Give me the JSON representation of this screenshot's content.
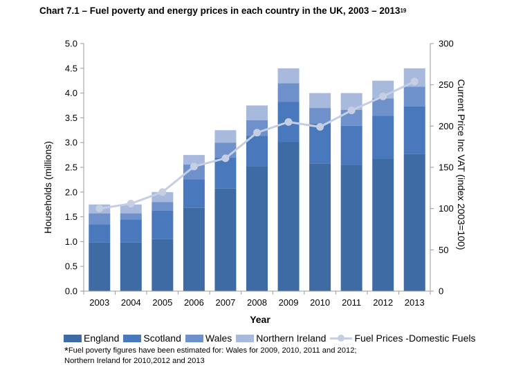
{
  "chart_data": {
    "type": "bar",
    "stacked": true,
    "title": "Chart 7.1 – Fuel poverty and energy prices in each country in the UK, 2003 – 2013",
    "title_superscript": "19",
    "xlabel": "Year",
    "ylabel": "Households (millions)",
    "y2label": "Current  Price Inc VAT (index 2003=100)",
    "categories": [
      "2003",
      "2004",
      "2005",
      "2006",
      "2007",
      "2008",
      "2009",
      "2010",
      "2011",
      "2012",
      "2013"
    ],
    "ylim": [
      0,
      5.0
    ],
    "y2lim": [
      0,
      300
    ],
    "yticks": [
      "0.0",
      "0.5",
      "1.0",
      "1.5",
      "2.0",
      "2.5",
      "3.0",
      "3.5",
      "4.0",
      "4.5",
      "5.0"
    ],
    "y2ticks": [
      "0",
      "50",
      "100",
      "150",
      "200",
      "250",
      "300"
    ],
    "grid": false,
    "legend_position": "bottom",
    "series": [
      {
        "name": "England",
        "color": "#3f6ba4",
        "values": [
          0.98,
          0.98,
          1.05,
          1.68,
          2.07,
          2.52,
          3.01,
          2.58,
          2.55,
          2.68,
          2.77
        ]
      },
      {
        "name": "Scotland",
        "color": "#4978bc",
        "values": [
          0.37,
          0.47,
          0.57,
          0.58,
          0.63,
          0.62,
          0.81,
          0.8,
          0.79,
          0.86,
          0.96
        ]
      },
      {
        "name": "Wales",
        "color": "#6e91cb",
        "values": [
          0.22,
          0.12,
          0.18,
          0.3,
          0.3,
          0.31,
          0.38,
          0.32,
          0.32,
          0.35,
          0.4
        ]
      },
      {
        "name": "Northern Ireland",
        "color": "#a8b9de",
        "values": [
          0.18,
          0.18,
          0.2,
          0.19,
          0.25,
          0.3,
          0.3,
          0.3,
          0.34,
          0.36,
          0.37
        ]
      }
    ],
    "line_series": {
      "name": "Fuel Prices -Domestic Fuels",
      "color": "#c5cee3",
      "axis": "right",
      "values": [
        100,
        106,
        120,
        151,
        161,
        192,
        205,
        199,
        219,
        236,
        254
      ]
    }
  },
  "footnote": {
    "marker": "*",
    "line1": "Fuel poverty figures have been estimated for: Wales for 2009, 2010, 2011 and 2012;",
    "line2": "Northern Ireland for 2010,2012  and 2013"
  }
}
